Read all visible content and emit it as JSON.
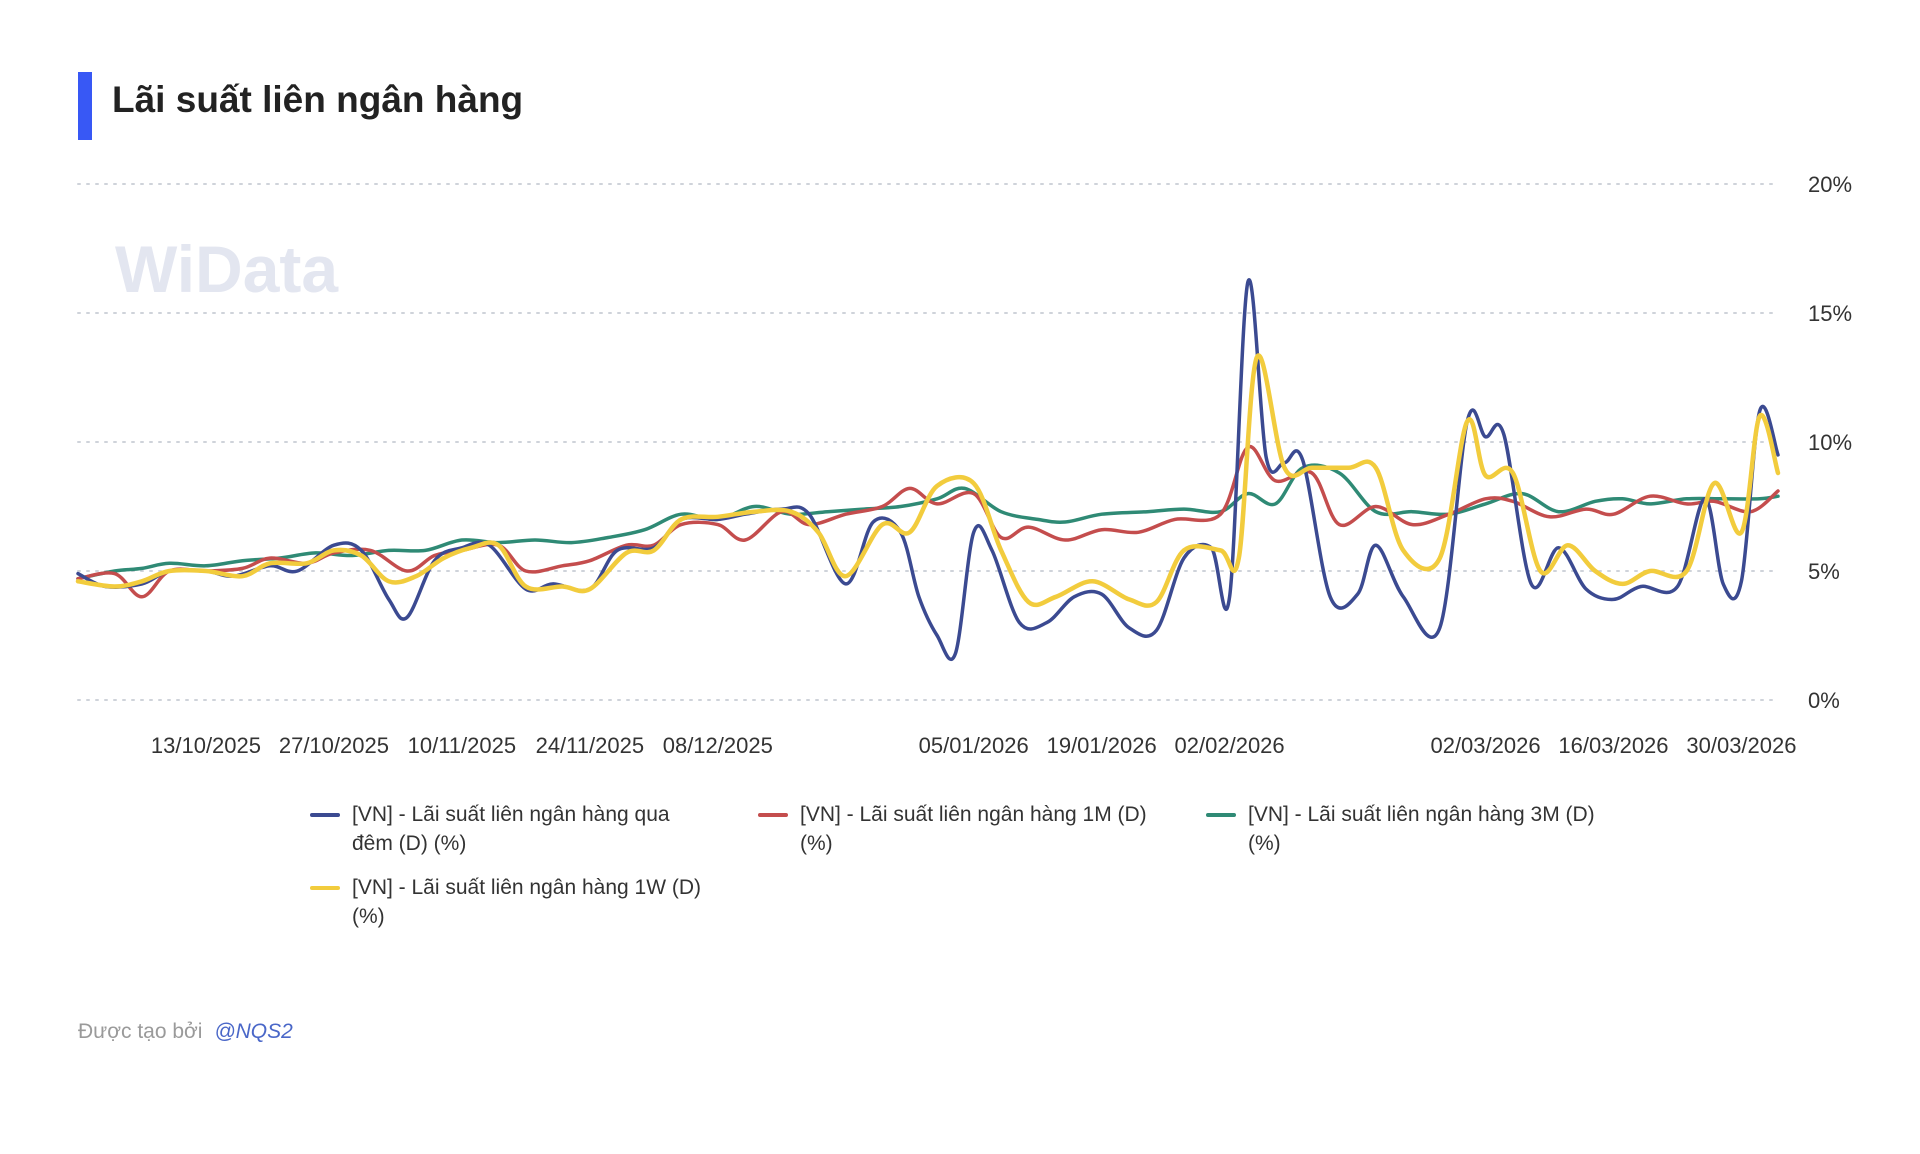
{
  "header": {
    "title": "Lãi suất liên ngân hàng"
  },
  "watermark": {
    "text": "WiData"
  },
  "footer": {
    "created_by": "Được tạo bởi",
    "author": "@NQS2"
  },
  "colors": {
    "overnight": "#3b4a91",
    "m1": "#c44d4d",
    "m3": "#2f8a75",
    "w1": "#f2cc3d",
    "accent": "#3858f5"
  },
  "chart_data": {
    "type": "line",
    "title": "Lãi suất liên ngân hàng",
    "xlabel": "",
    "ylabel": "",
    "y_axis_position": "right",
    "ylim": [
      0,
      20
    ],
    "y_ticks": [
      0,
      5,
      10,
      15,
      20
    ],
    "y_tick_labels": [
      "0%",
      "5%",
      "10%",
      "15%",
      "20%"
    ],
    "x_range": [
      "2025-09-29",
      "2026-04-03"
    ],
    "x_ticks": [
      "2025-10-13",
      "2025-10-27",
      "2025-11-10",
      "2025-11-24",
      "2025-12-08",
      "2026-01-05",
      "2026-01-19",
      "2026-02-02",
      "2026-03-02",
      "2026-03-16",
      "2026-03-30"
    ],
    "x_tick_labels": [
      "13/10/2025",
      "27/10/2025",
      "10/11/2025",
      "24/11/2025",
      "08/12/2025",
      "05/01/2026",
      "19/01/2026",
      "02/02/2026",
      "02/03/2026",
      "16/03/2026",
      "30/03/2026"
    ],
    "grid": "horizontal-dotted",
    "legend_position": "bottom",
    "series": [
      {
        "name": "[VN] - Lãi suất liên ngân hàng qua đêm (D) (%)",
        "color_key": "overnight",
        "points": [
          [
            "2025-09-29",
            4.9
          ],
          [
            "2025-10-02",
            4.4
          ],
          [
            "2025-10-06",
            4.5
          ],
          [
            "2025-10-09",
            5.0
          ],
          [
            "2025-10-13",
            5.0
          ],
          [
            "2025-10-16",
            4.8
          ],
          [
            "2025-10-20",
            5.2
          ],
          [
            "2025-10-23",
            5.0
          ],
          [
            "2025-10-27",
            6.0
          ],
          [
            "2025-10-30",
            5.8
          ],
          [
            "2025-11-02",
            3.9
          ],
          [
            "2025-11-04",
            3.2
          ],
          [
            "2025-11-07",
            5.4
          ],
          [
            "2025-11-10",
            5.9
          ],
          [
            "2025-11-13",
            6.0
          ],
          [
            "2025-11-17",
            4.3
          ],
          [
            "2025-11-20",
            4.5
          ],
          [
            "2025-11-24",
            4.3
          ],
          [
            "2025-11-27",
            5.8
          ],
          [
            "2025-12-01",
            5.9
          ],
          [
            "2025-12-04",
            7.0
          ],
          [
            "2025-12-08",
            7.0
          ],
          [
            "2025-12-11",
            7.2
          ],
          [
            "2025-12-15",
            7.4
          ],
          [
            "2025-12-18",
            7.2
          ],
          [
            "2025-12-22",
            4.5
          ],
          [
            "2025-12-25",
            6.9
          ],
          [
            "2025-12-28",
            6.5
          ],
          [
            "2025-12-30",
            4.0
          ],
          [
            "2026-01-01",
            2.5
          ],
          [
            "2026-01-03",
            1.8
          ],
          [
            "2026-01-05",
            6.5
          ],
          [
            "2026-01-07",
            5.8
          ],
          [
            "2026-01-10",
            3.0
          ],
          [
            "2026-01-13",
            3.0
          ],
          [
            "2026-01-16",
            4.0
          ],
          [
            "2026-01-19",
            4.1
          ],
          [
            "2026-01-22",
            2.8
          ],
          [
            "2026-01-25",
            2.7
          ],
          [
            "2026-01-28",
            5.5
          ],
          [
            "2026-01-31",
            5.9
          ],
          [
            "2026-02-02",
            4.0
          ],
          [
            "2026-02-04",
            16.2
          ],
          [
            "2026-02-06",
            9.4
          ],
          [
            "2026-02-08",
            9.2
          ],
          [
            "2026-02-10",
            9.3
          ],
          [
            "2026-02-13",
            4.0
          ],
          [
            "2026-02-16",
            4.1
          ],
          [
            "2026-02-18",
            6.0
          ],
          [
            "2026-02-21",
            4.0
          ],
          [
            "2026-02-25",
            2.8
          ],
          [
            "2026-02-28",
            10.8
          ],
          [
            "2026-03-02",
            10.2
          ],
          [
            "2026-03-04",
            10.3
          ],
          [
            "2026-03-07",
            4.5
          ],
          [
            "2026-03-10",
            5.9
          ],
          [
            "2026-03-13",
            4.3
          ],
          [
            "2026-03-16",
            3.9
          ],
          [
            "2026-03-19",
            4.4
          ],
          [
            "2026-03-23",
            4.4
          ],
          [
            "2026-03-26",
            7.8
          ],
          [
            "2026-03-28",
            4.5
          ],
          [
            "2026-03-30",
            4.6
          ],
          [
            "2026-04-01",
            11.2
          ],
          [
            "2026-04-03",
            9.5
          ]
        ]
      },
      {
        "name": "[VN] - Lãi suất liên ngân hàng 1M (D) (%)",
        "color_key": "m1",
        "points": [
          [
            "2025-09-29",
            4.7
          ],
          [
            "2025-10-03",
            4.9
          ],
          [
            "2025-10-06",
            4.0
          ],
          [
            "2025-10-09",
            5.0
          ],
          [
            "2025-10-13",
            5.0
          ],
          [
            "2025-10-17",
            5.1
          ],
          [
            "2025-10-20",
            5.5
          ],
          [
            "2025-10-24",
            5.3
          ],
          [
            "2025-10-27",
            5.7
          ],
          [
            "2025-10-31",
            5.8
          ],
          [
            "2025-11-04",
            5.0
          ],
          [
            "2025-11-07",
            5.6
          ],
          [
            "2025-11-10",
            5.8
          ],
          [
            "2025-11-14",
            6.0
          ],
          [
            "2025-11-17",
            5.0
          ],
          [
            "2025-11-21",
            5.2
          ],
          [
            "2025-11-24",
            5.4
          ],
          [
            "2025-11-28",
            6.0
          ],
          [
            "2025-12-01",
            6.0
          ],
          [
            "2025-12-04",
            6.8
          ],
          [
            "2025-12-08",
            6.8
          ],
          [
            "2025-12-11",
            6.2
          ],
          [
            "2025-12-15",
            7.3
          ],
          [
            "2025-12-18",
            6.8
          ],
          [
            "2025-12-22",
            7.2
          ],
          [
            "2025-12-26",
            7.5
          ],
          [
            "2025-12-29",
            8.2
          ],
          [
            "2026-01-01",
            7.6
          ],
          [
            "2026-01-05",
            8.0
          ],
          [
            "2026-01-08",
            6.3
          ],
          [
            "2026-01-11",
            6.7
          ],
          [
            "2026-01-15",
            6.2
          ],
          [
            "2026-01-19",
            6.6
          ],
          [
            "2026-01-23",
            6.5
          ],
          [
            "2026-01-27",
            7.0
          ],
          [
            "2026-02-01",
            7.2
          ],
          [
            "2026-02-04",
            9.8
          ],
          [
            "2026-02-07",
            8.5
          ],
          [
            "2026-02-11",
            8.8
          ],
          [
            "2026-02-14",
            6.8
          ],
          [
            "2026-02-18",
            7.5
          ],
          [
            "2026-02-22",
            6.8
          ],
          [
            "2026-02-26",
            7.2
          ],
          [
            "2026-03-02",
            7.8
          ],
          [
            "2026-03-05",
            7.7
          ],
          [
            "2026-03-09",
            7.1
          ],
          [
            "2026-03-13",
            7.4
          ],
          [
            "2026-03-16",
            7.2
          ],
          [
            "2026-03-20",
            7.9
          ],
          [
            "2026-03-24",
            7.6
          ],
          [
            "2026-03-27",
            7.7
          ],
          [
            "2026-03-31",
            7.3
          ],
          [
            "2026-04-03",
            8.1
          ]
        ]
      },
      {
        "name": "[VN] - Lãi suất liên ngân hàng 3M (D) (%)",
        "color_key": "m3",
        "points": [
          [
            "2025-09-29",
            4.7
          ],
          [
            "2025-10-03",
            5.0
          ],
          [
            "2025-10-06",
            5.1
          ],
          [
            "2025-10-09",
            5.3
          ],
          [
            "2025-10-13",
            5.2
          ],
          [
            "2025-10-17",
            5.4
          ],
          [
            "2025-10-21",
            5.5
          ],
          [
            "2025-10-25",
            5.7
          ],
          [
            "2025-10-29",
            5.6
          ],
          [
            "2025-11-02",
            5.8
          ],
          [
            "2025-11-06",
            5.8
          ],
          [
            "2025-11-10",
            6.2
          ],
          [
            "2025-11-14",
            6.1
          ],
          [
            "2025-11-18",
            6.2
          ],
          [
            "2025-11-22",
            6.1
          ],
          [
            "2025-11-26",
            6.3
          ],
          [
            "2025-11-30",
            6.6
          ],
          [
            "2025-12-04",
            7.2
          ],
          [
            "2025-12-08",
            7.0
          ],
          [
            "2025-12-12",
            7.5
          ],
          [
            "2025-12-16",
            7.2
          ],
          [
            "2025-12-20",
            7.3
          ],
          [
            "2025-12-24",
            7.4
          ],
          [
            "2025-12-28",
            7.5
          ],
          [
            "2026-01-01",
            7.8
          ],
          [
            "2026-01-04",
            8.2
          ],
          [
            "2026-01-08",
            7.3
          ],
          [
            "2026-01-12",
            7.0
          ],
          [
            "2026-01-15",
            6.9
          ],
          [
            "2026-01-19",
            7.2
          ],
          [
            "2026-01-24",
            7.3
          ],
          [
            "2026-01-28",
            7.4
          ],
          [
            "2026-02-01",
            7.3
          ],
          [
            "2026-02-04",
            8.0
          ],
          [
            "2026-02-07",
            7.6
          ],
          [
            "2026-02-10",
            9.0
          ],
          [
            "2026-02-14",
            8.8
          ],
          [
            "2026-02-18",
            7.3
          ],
          [
            "2026-02-22",
            7.3
          ],
          [
            "2026-02-26",
            7.2
          ],
          [
            "2026-03-02",
            7.6
          ],
          [
            "2026-03-06",
            8.0
          ],
          [
            "2026-03-10",
            7.3
          ],
          [
            "2026-03-14",
            7.7
          ],
          [
            "2026-03-17",
            7.8
          ],
          [
            "2026-03-20",
            7.6
          ],
          [
            "2026-03-24",
            7.8
          ],
          [
            "2026-03-28",
            7.8
          ],
          [
            "2026-04-01",
            7.8
          ],
          [
            "2026-04-03",
            7.9
          ]
        ]
      },
      {
        "name": "[VN] - Lãi suất liên ngân hàng 1W (D) (%)",
        "color_key": "w1",
        "points": [
          [
            "2025-09-29",
            4.6
          ],
          [
            "2025-10-03",
            4.4
          ],
          [
            "2025-10-06",
            4.6
          ],
          [
            "2025-10-09",
            5.0
          ],
          [
            "2025-10-13",
            5.0
          ],
          [
            "2025-10-17",
            4.8
          ],
          [
            "2025-10-20",
            5.3
          ],
          [
            "2025-10-24",
            5.3
          ],
          [
            "2025-10-27",
            5.8
          ],
          [
            "2025-10-30",
            5.6
          ],
          [
            "2025-11-02",
            4.6
          ],
          [
            "2025-11-05",
            4.8
          ],
          [
            "2025-11-08",
            5.5
          ],
          [
            "2025-11-11",
            5.9
          ],
          [
            "2025-11-14",
            6.0
          ],
          [
            "2025-11-17",
            4.4
          ],
          [
            "2025-11-21",
            4.4
          ],
          [
            "2025-11-24",
            4.3
          ],
          [
            "2025-11-28",
            5.7
          ],
          [
            "2025-12-01",
            5.8
          ],
          [
            "2025-12-04",
            7.0
          ],
          [
            "2025-12-08",
            7.1
          ],
          [
            "2025-12-12",
            7.3
          ],
          [
            "2025-12-16",
            7.3
          ],
          [
            "2025-12-19",
            6.5
          ],
          [
            "2025-12-22",
            4.8
          ],
          [
            "2025-12-26",
            6.8
          ],
          [
            "2025-12-29",
            6.5
          ],
          [
            "2026-01-01",
            8.3
          ],
          [
            "2026-01-05",
            8.4
          ],
          [
            "2026-01-08",
            5.8
          ],
          [
            "2026-01-11",
            3.8
          ],
          [
            "2026-01-14",
            4.0
          ],
          [
            "2026-01-18",
            4.6
          ],
          [
            "2026-01-22",
            3.9
          ],
          [
            "2026-01-25",
            3.8
          ],
          [
            "2026-01-28",
            5.8
          ],
          [
            "2026-02-01",
            5.8
          ],
          [
            "2026-02-03",
            5.5
          ],
          [
            "2026-02-05",
            13.3
          ],
          [
            "2026-02-08",
            9.0
          ],
          [
            "2026-02-11",
            9.0
          ],
          [
            "2026-02-15",
            9.0
          ],
          [
            "2026-02-18",
            9.0
          ],
          [
            "2026-02-21",
            5.8
          ],
          [
            "2026-02-25",
            5.5
          ],
          [
            "2026-02-28",
            10.8
          ],
          [
            "2026-03-02",
            8.7
          ],
          [
            "2026-03-05",
            8.8
          ],
          [
            "2026-03-08",
            5.0
          ],
          [
            "2026-03-11",
            6.0
          ],
          [
            "2026-03-14",
            5.0
          ],
          [
            "2026-03-17",
            4.5
          ],
          [
            "2026-03-20",
            5.0
          ],
          [
            "2026-03-24",
            5.0
          ],
          [
            "2026-03-27",
            8.4
          ],
          [
            "2026-03-30",
            6.5
          ],
          [
            "2026-04-01",
            11.0
          ],
          [
            "2026-04-03",
            8.8
          ]
        ]
      }
    ]
  }
}
